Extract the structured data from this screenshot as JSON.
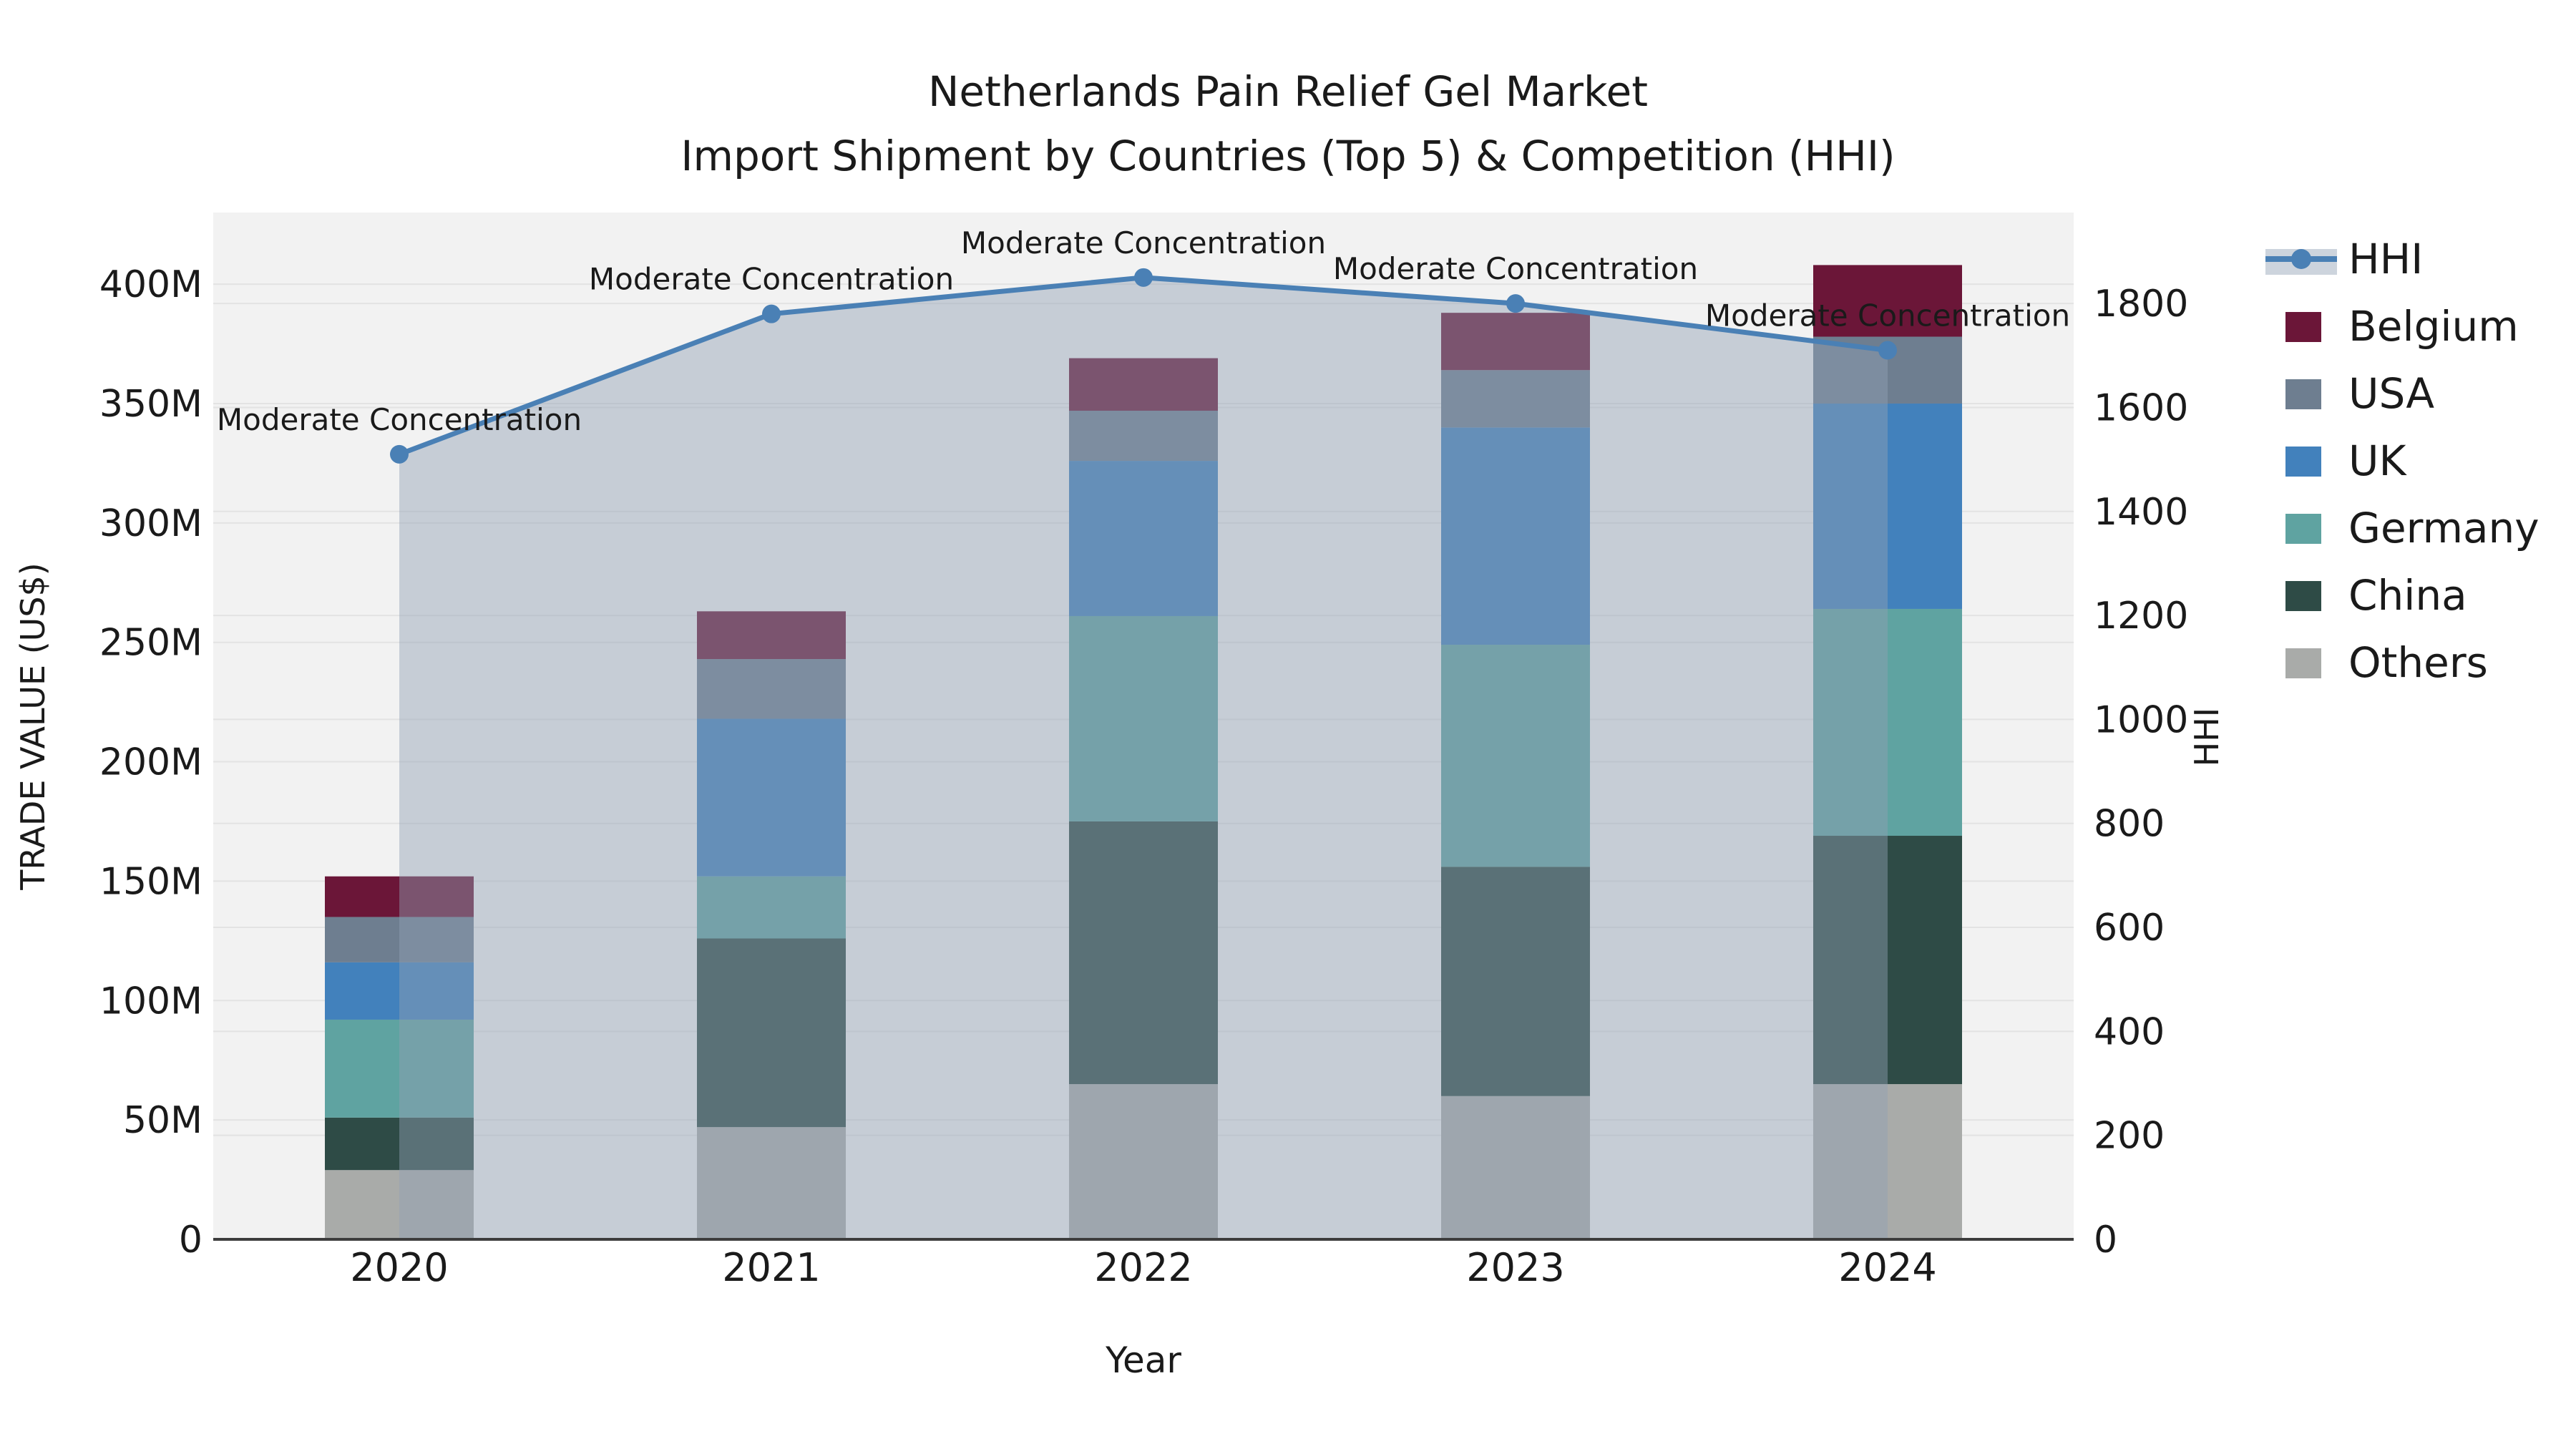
{
  "title": {
    "line1": "Netherlands Pain Relief Gel Market",
    "line2": "Import Shipment by Countries (Top 5) & Competition (HHI)"
  },
  "axes": {
    "left": {
      "title": "TRADE VALUE (US$)",
      "tick_labels": [
        "0",
        "50M",
        "100M",
        "150M",
        "200M",
        "250M",
        "300M",
        "350M",
        "400M"
      ],
      "tick_values": [
        0,
        50,
        100,
        150,
        200,
        250,
        300,
        350,
        400
      ],
      "max": 430
    },
    "right": {
      "title": "HHI",
      "tick_labels": [
        "0",
        "200",
        "400",
        "600",
        "800",
        "1000",
        "1200",
        "1400",
        "1600",
        "1800"
      ],
      "tick_values": [
        0,
        200,
        400,
        600,
        800,
        1000,
        1200,
        1400,
        1600,
        1800
      ],
      "max": 1975
    },
    "x": {
      "title": "Year",
      "categories": [
        "2020",
        "2021",
        "2022",
        "2023",
        "2024"
      ]
    }
  },
  "legend": {
    "items": [
      {
        "label": "HHI",
        "kind": "line",
        "color": "#4a80b5"
      },
      {
        "label": "Belgium",
        "kind": "box",
        "color": "#6b1638"
      },
      {
        "label": "USA",
        "kind": "box",
        "color": "#6e7e90"
      },
      {
        "label": "UK",
        "kind": "box",
        "color": "#4281bc"
      },
      {
        "label": "Germany",
        "kind": "box",
        "color": "#5fa3a1"
      },
      {
        "label": "China",
        "kind": "box",
        "color": "#2e4b46"
      },
      {
        "label": "Others",
        "kind": "box",
        "color": "#a9aba9"
      }
    ]
  },
  "chart_data": {
    "type": "bar",
    "subtype": "stacked-bars-with-line-overlay",
    "title": "Netherlands Pain Relief Gel Market — Import Shipment by Countries (Top 5) & Competition (HHI)",
    "xlabel": "Year",
    "ylabel_left": "TRADE VALUE (US$)",
    "ylabel_right": "HHI",
    "categories": [
      "2020",
      "2021",
      "2022",
      "2023",
      "2024"
    ],
    "bar_unit": "M US$",
    "series": [
      {
        "name": "Others",
        "color": "#a9aba9",
        "values": [
          29,
          47,
          65,
          60,
          65
        ]
      },
      {
        "name": "China",
        "color": "#2e4b46",
        "values": [
          22,
          79,
          110,
          96,
          104
        ]
      },
      {
        "name": "Germany",
        "color": "#5fa3a1",
        "values": [
          41,
          26,
          86,
          93,
          95
        ]
      },
      {
        "name": "UK",
        "color": "#4281bc",
        "values": [
          24,
          66,
          65,
          91,
          86
        ]
      },
      {
        "name": "USA",
        "color": "#6e7e90",
        "values": [
          19,
          25,
          21,
          24,
          28
        ]
      },
      {
        "name": "Belgium",
        "color": "#6b1638",
        "values": [
          17,
          20,
          22,
          24,
          30
        ]
      }
    ],
    "bar_totals": [
      152,
      263,
      369,
      388,
      408
    ],
    "line": {
      "name": "HHI",
      "color": "#4a80b5",
      "area_fill": "rgba(145,160,180,0.45)",
      "values": [
        1510,
        1780,
        1850,
        1800,
        1710
      ]
    },
    "annotations": [
      "Moderate Concentration",
      "Moderate Concentration",
      "Moderate Concentration",
      "Moderate Concentration",
      "Moderate Concentration"
    ],
    "ylim_left": [
      0,
      430
    ],
    "ylim_right": [
      0,
      1975
    ],
    "grid": true,
    "legend_position": "right",
    "plot_background": "#f2f2f2",
    "gridline_color": "#e3e3e3",
    "baseline_color": "#3d3d3d"
  }
}
